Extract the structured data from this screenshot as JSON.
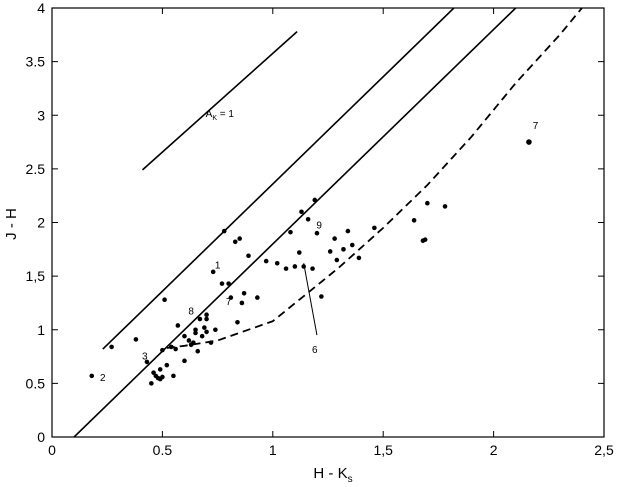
{
  "chart_data": {
    "type": "scatter",
    "title": "",
    "xlabel": {
      "main": "H - K",
      "sub": "s"
    },
    "ylabel": "J - H",
    "xlim": [
      0,
      2.5
    ],
    "ylim": [
      0,
      4
    ],
    "x_ticks": [
      {
        "value": 0,
        "label": "0"
      },
      {
        "value": 0.5,
        "label": "0.5"
      },
      {
        "value": 1,
        "label": "1"
      },
      {
        "value": 1.5,
        "label": "1,5"
      },
      {
        "value": 2,
        "label": "2"
      },
      {
        "value": 2.5,
        "label": "2,5"
      }
    ],
    "y_ticks": [
      {
        "value": 0,
        "label": "0"
      },
      {
        "value": 0.5,
        "label": "0.5"
      },
      {
        "value": 1,
        "label": "1"
      },
      {
        "value": 1.5,
        "label": "1,5"
      },
      {
        "value": 2,
        "label": "2"
      },
      {
        "value": 2.5,
        "label": "2.5"
      },
      {
        "value": 3,
        "label": "3"
      },
      {
        "value": 3.5,
        "label": "3.5"
      },
      {
        "value": 4,
        "label": "4"
      }
    ],
    "grid": false,
    "lines": [
      {
        "style": "solid",
        "points": [
          [
            0.41,
            2.49
          ],
          [
            1.11,
            3.78
          ]
        ]
      },
      {
        "style": "solid",
        "points": [
          [
            0.23,
            0.82
          ],
          [
            1.82,
            4.0
          ]
        ]
      },
      {
        "style": "solid",
        "points": [
          [
            0.1,
            0.0
          ],
          [
            2.1,
            4.0
          ]
        ]
      },
      {
        "style": "dashed",
        "points": [
          [
            0.52,
            0.83
          ],
          [
            0.6,
            0.85
          ],
          [
            0.75,
            0.9
          ],
          [
            1.0,
            1.08
          ],
          [
            1.15,
            1.33
          ],
          [
            1.3,
            1.58
          ],
          [
            1.5,
            1.95
          ],
          [
            1.7,
            2.35
          ],
          [
            1.9,
            2.8
          ],
          [
            2.1,
            3.3
          ],
          [
            2.3,
            3.75
          ],
          [
            2.4,
            4.0
          ]
        ]
      }
    ],
    "points": [
      {
        "x": 0.18,
        "y": 0.57
      },
      {
        "x": 0.27,
        "y": 0.84
      },
      {
        "x": 0.38,
        "y": 0.91
      },
      {
        "x": 0.43,
        "y": 0.7
      },
      {
        "x": 0.45,
        "y": 0.5
      },
      {
        "x": 0.46,
        "y": 0.6
      },
      {
        "x": 0.47,
        "y": 0.57
      },
      {
        "x": 0.48,
        "y": 0.55
      },
      {
        "x": 0.49,
        "y": 0.54
      },
      {
        "x": 0.49,
        "y": 0.63
      },
      {
        "x": 0.5,
        "y": 0.56
      },
      {
        "x": 0.5,
        "y": 0.81
      },
      {
        "x": 0.51,
        "y": 1.28
      },
      {
        "x": 0.52,
        "y": 0.67
      },
      {
        "x": 0.54,
        "y": 0.84
      },
      {
        "x": 0.55,
        "y": 0.57
      },
      {
        "x": 0.56,
        "y": 0.82
      },
      {
        "x": 0.57,
        "y": 1.04
      },
      {
        "x": 0.6,
        "y": 0.71
      },
      {
        "x": 0.6,
        "y": 0.94
      },
      {
        "x": 0.62,
        "y": 0.9
      },
      {
        "x": 0.63,
        "y": 0.86
      },
      {
        "x": 0.64,
        "y": 0.88
      },
      {
        "x": 0.65,
        "y": 0.97
      },
      {
        "x": 0.65,
        "y": 1.0
      },
      {
        "x": 0.66,
        "y": 0.8
      },
      {
        "x": 0.67,
        "y": 1.1
      },
      {
        "x": 0.68,
        "y": 0.94
      },
      {
        "x": 0.69,
        "y": 1.02
      },
      {
        "x": 0.7,
        "y": 0.98
      },
      {
        "x": 0.7,
        "y": 1.14
      },
      {
        "x": 0.7,
        "y": 1.1
      },
      {
        "x": 0.72,
        "y": 0.88
      },
      {
        "x": 0.73,
        "y": 1.54
      },
      {
        "x": 0.74,
        "y": 1.0
      },
      {
        "x": 0.77,
        "y": 1.43
      },
      {
        "x": 0.78,
        "y": 1.92
      },
      {
        "x": 0.8,
        "y": 1.43
      },
      {
        "x": 0.81,
        "y": 1.3
      },
      {
        "x": 0.83,
        "y": 1.82
      },
      {
        "x": 0.84,
        "y": 1.07
      },
      {
        "x": 0.85,
        "y": 1.85
      },
      {
        "x": 0.86,
        "y": 1.25
      },
      {
        "x": 0.87,
        "y": 1.34
      },
      {
        "x": 0.89,
        "y": 1.69
      },
      {
        "x": 0.93,
        "y": 1.3
      },
      {
        "x": 0.97,
        "y": 1.64
      },
      {
        "x": 1.02,
        "y": 1.62
      },
      {
        "x": 1.06,
        "y": 1.57
      },
      {
        "x": 1.08,
        "y": 1.91
      },
      {
        "x": 1.1,
        "y": 1.59
      },
      {
        "x": 1.12,
        "y": 1.72
      },
      {
        "x": 1.13,
        "y": 2.1
      },
      {
        "x": 1.14,
        "y": 1.59
      },
      {
        "x": 1.16,
        "y": 2.03
      },
      {
        "x": 1.18,
        "y": 1.57
      },
      {
        "x": 1.19,
        "y": 2.21
      },
      {
        "x": 1.2,
        "y": 1.9
      },
      {
        "x": 1.22,
        "y": 1.31
      },
      {
        "x": 1.26,
        "y": 1.73
      },
      {
        "x": 1.28,
        "y": 1.85
      },
      {
        "x": 1.29,
        "y": 1.65
      },
      {
        "x": 1.32,
        "y": 1.75
      },
      {
        "x": 1.34,
        "y": 1.92
      },
      {
        "x": 1.36,
        "y": 1.79
      },
      {
        "x": 1.39,
        "y": 1.67
      },
      {
        "x": 1.46,
        "y": 1.95
      },
      {
        "x": 1.64,
        "y": 2.02
      },
      {
        "x": 1.68,
        "y": 1.83
      },
      {
        "x": 1.69,
        "y": 1.84
      },
      {
        "x": 1.7,
        "y": 2.18
      },
      {
        "x": 1.78,
        "y": 2.15
      },
      {
        "x": 2.16,
        "y": 2.75
      }
    ],
    "annotations": [
      {
        "text": "A",
        "sub": "K",
        "suffix": " = 1",
        "x": 0.76,
        "y": 3.02
      },
      {
        "text": "2",
        "x": 0.23,
        "y": 0.56
      },
      {
        "text": "3",
        "x": 0.42,
        "y": 0.76
      },
      {
        "text": "8",
        "x": 0.63,
        "y": 1.18
      },
      {
        "text": "1",
        "x": 0.75,
        "y": 1.61
      },
      {
        "text": "9",
        "x": 1.21,
        "y": 1.98
      },
      {
        "text": "6",
        "x": 1.19,
        "y": 0.82
      },
      {
        "text": "7",
        "x": 2.19,
        "y": 2.91
      },
      {
        "text": "7",
        "x": 0.8,
        "y": 1.27
      }
    ],
    "leader_lines": [
      {
        "from": [
          1.14,
          1.62
        ],
        "to": [
          1.2,
          0.95
        ]
      }
    ]
  }
}
